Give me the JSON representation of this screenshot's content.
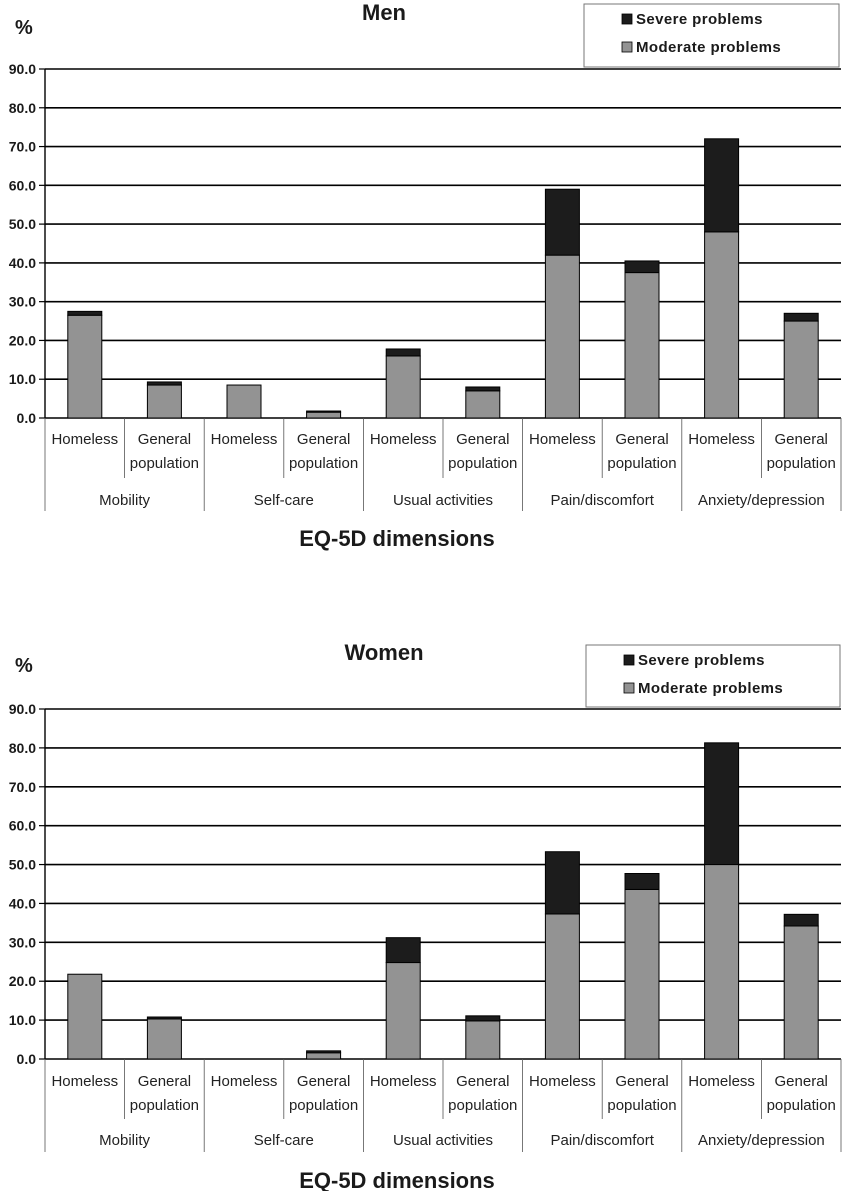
{
  "chart_data": [
    {
      "type": "bar",
      "stacked": true,
      "title": "Men",
      "ylabel": "%",
      "xlabel": "EQ-5D dimensions",
      "ylim": [
        0,
        90
      ],
      "yticks": [
        "0.0",
        "10.0",
        "20.0",
        "30.0",
        "40.0",
        "50.0",
        "60.0",
        "70.0",
        "80.0",
        "90.0"
      ],
      "groups": [
        "Mobility",
        "Self-care",
        "Usual activities",
        "Pain/discomfort",
        "Anxiety/depression"
      ],
      "subcategories": [
        "Homeless",
        "General population"
      ],
      "legend": {
        "position": "top-right",
        "entries": [
          "Severe problems",
          "Moderate problems"
        ]
      },
      "series": [
        {
          "name": "Moderate problems",
          "color": "#939393",
          "values": [
            26.5,
            8.5,
            8.5,
            1.5,
            16.0,
            7.0,
            42.0,
            37.5,
            48.0,
            25.0
          ]
        },
        {
          "name": "Severe problems",
          "color": "#1c1c1c",
          "values": [
            1.0,
            0.8,
            0.0,
            0.3,
            1.8,
            1.0,
            17.0,
            3.0,
            24.0,
            2.0
          ]
        }
      ]
    },
    {
      "type": "bar",
      "stacked": true,
      "title": "Women",
      "ylabel": "%",
      "xlabel": "EQ-5D dimensions",
      "ylim": [
        0,
        90
      ],
      "yticks": [
        "0.0",
        "10.0",
        "20.0",
        "30.0",
        "40.0",
        "50.0",
        "60.0",
        "70.0",
        "80.0",
        "90.0"
      ],
      "groups": [
        "Mobility",
        "Self-care",
        "Usual activities",
        "Pain/discomfort",
        "Anxiety/depression"
      ],
      "subcategories": [
        "Homeless",
        "General population"
      ],
      "legend": {
        "position": "top-right",
        "entries": [
          "Severe problems",
          "Moderate problems"
        ]
      },
      "series": [
        {
          "name": "Moderate problems",
          "color": "#939393",
          "values": [
            21.8,
            10.3,
            0.0,
            1.6,
            24.8,
            9.8,
            37.3,
            43.6,
            50.0,
            34.2
          ]
        },
        {
          "name": "Severe problems",
          "color": "#1c1c1c",
          "values": [
            0.0,
            0.5,
            0.0,
            0.5,
            6.4,
            1.3,
            16.0,
            4.1,
            31.3,
            3.0
          ]
        }
      ]
    }
  ]
}
